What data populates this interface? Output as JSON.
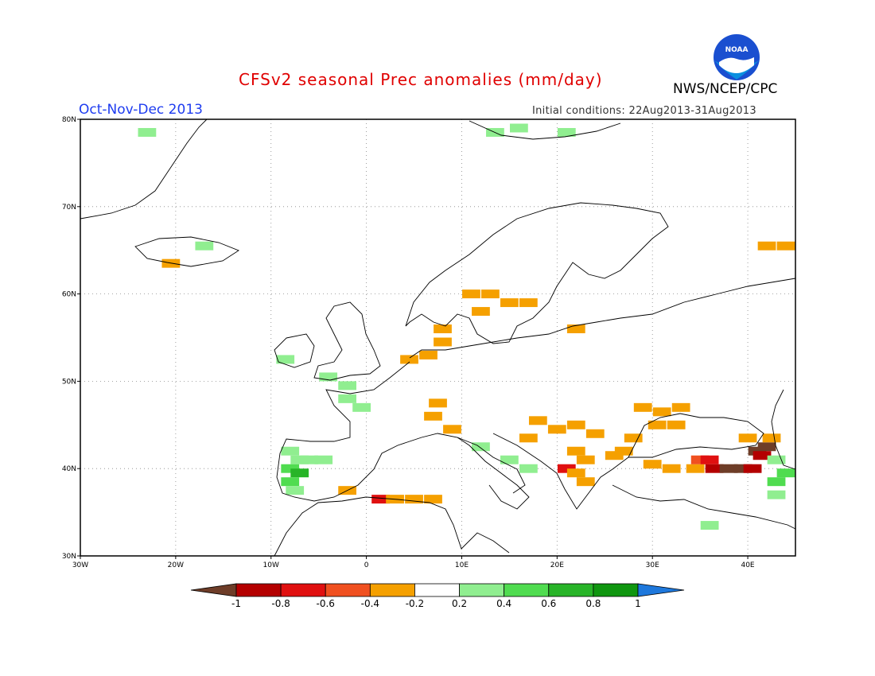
{
  "title": "CFSv2 seasonal Prec anomalies (mm/day)",
  "season": "Oct-Nov-Dec 2013",
  "initial_conditions": "Initial conditions: 22Aug2013-31Aug2013",
  "agency": "NWS/NCEP/CPC",
  "logo_text": "NOAA",
  "map": {
    "lon_range": [
      -30,
      45
    ],
    "lat_range": [
      30,
      80
    ],
    "lon_ticks": [
      {
        "value": -30,
        "label": "30W"
      },
      {
        "value": -20,
        "label": "20W"
      },
      {
        "value": -10,
        "label": "10W"
      },
      {
        "value": 0,
        "label": "0"
      },
      {
        "value": 10,
        "label": "10E"
      },
      {
        "value": 20,
        "label": "20E"
      },
      {
        "value": 30,
        "label": "30E"
      },
      {
        "value": 40,
        "label": "40E"
      }
    ],
    "lat_ticks": [
      {
        "value": 30,
        "label": "30N"
      },
      {
        "value": 40,
        "label": "40N"
      },
      {
        "value": 50,
        "label": "50N"
      },
      {
        "value": 60,
        "label": "60N"
      },
      {
        "value": 70,
        "label": "70N"
      },
      {
        "value": 80,
        "label": "80N"
      }
    ],
    "grid": true
  },
  "colorbar": {
    "labels": [
      "-1",
      "-0.8",
      "-0.6",
      "-0.4",
      "-0.2",
      "0.2",
      "0.4",
      "0.6",
      "0.8",
      "1"
    ],
    "colors": [
      "#6e3d28",
      "#b40000",
      "#e01010",
      "#f05020",
      "#f5a000",
      "#ffffff",
      "#90ee90",
      "#50dc50",
      "#28b428",
      "#109610",
      "#1e78dc"
    ]
  },
  "anomaly_cells": [
    {
      "lon": -23,
      "lat": 78.5,
      "c": 6
    },
    {
      "lon": -17,
      "lat": 65.5,
      "c": 6
    },
    {
      "lon": -20.5,
      "lat": 63.5,
      "c": 4
    },
    {
      "lon": 13.5,
      "lat": 78.5,
      "c": 6
    },
    {
      "lon": 16,
      "lat": 79,
      "c": 6
    },
    {
      "lon": 21,
      "lat": 78.5,
      "c": 6
    },
    {
      "lon": 11,
      "lat": 60,
      "c": 4
    },
    {
      "lon": 13,
      "lat": 60,
      "c": 4
    },
    {
      "lon": 15,
      "lat": 59,
      "c": 4
    },
    {
      "lon": 17,
      "lat": 59,
      "c": 4
    },
    {
      "lon": 12,
      "lat": 58,
      "c": 4
    },
    {
      "lon": 8,
      "lat": 56,
      "c": 4
    },
    {
      "lon": 22,
      "lat": 56,
      "c": 4
    },
    {
      "lon": 8,
      "lat": 54.5,
      "c": 4
    },
    {
      "lon": 6.5,
      "lat": 53,
      "c": 4
    },
    {
      "lon": 4.5,
      "lat": 52.5,
      "c": 4
    },
    {
      "lon": -8.5,
      "lat": 52.5,
      "c": 6
    },
    {
      "lon": -4,
      "lat": 50.5,
      "c": 6
    },
    {
      "lon": -2,
      "lat": 49.5,
      "c": 6
    },
    {
      "lon": -2,
      "lat": 48,
      "c": 6
    },
    {
      "lon": -0.5,
      "lat": 47,
      "c": 6
    },
    {
      "lon": 7.5,
      "lat": 47.5,
      "c": 4
    },
    {
      "lon": 7,
      "lat": 46,
      "c": 4
    },
    {
      "lon": 9,
      "lat": 44.5,
      "c": 4
    },
    {
      "lon": 18,
      "lat": 45.5,
      "c": 4
    },
    {
      "lon": 20,
      "lat": 44.5,
      "c": 4
    },
    {
      "lon": 22,
      "lat": 45,
      "c": 4
    },
    {
      "lon": 17,
      "lat": 43.5,
      "c": 4
    },
    {
      "lon": 24,
      "lat": 44,
      "c": 4
    },
    {
      "lon": 29,
      "lat": 47,
      "c": 4
    },
    {
      "lon": 31,
      "lat": 46.5,
      "c": 4
    },
    {
      "lon": 33,
      "lat": 47,
      "c": 4
    },
    {
      "lon": 30.5,
      "lat": 45,
      "c": 4
    },
    {
      "lon": 32.5,
      "lat": 45,
      "c": 4
    },
    {
      "lon": 28,
      "lat": 43.5,
      "c": 4
    },
    {
      "lon": 27,
      "lat": 42,
      "c": 4
    },
    {
      "lon": 12,
      "lat": 42.5,
      "c": 6
    },
    {
      "lon": 15,
      "lat": 41,
      "c": 6
    },
    {
      "lon": 17,
      "lat": 40,
      "c": 6
    },
    {
      "lon": 22,
      "lat": 42,
      "c": 4
    },
    {
      "lon": 23,
      "lat": 41,
      "c": 4
    },
    {
      "lon": 26,
      "lat": 41.5,
      "c": 4
    },
    {
      "lon": 21,
      "lat": 40,
      "c": 2
    },
    {
      "lon": 22,
      "lat": 39.5,
      "c": 4
    },
    {
      "lon": 23,
      "lat": 38.5,
      "c": 4
    },
    {
      "lon": 30,
      "lat": 40.5,
      "c": 4
    },
    {
      "lon": 32,
      "lat": 40,
      "c": 4
    },
    {
      "lon": 34.5,
      "lat": 40,
      "c": 4
    },
    {
      "lon": 35,
      "lat": 41,
      "c": 3
    },
    {
      "lon": 36,
      "lat": 41,
      "c": 2
    },
    {
      "lon": 36.5,
      "lat": 40,
      "c": 1
    },
    {
      "lon": 38,
      "lat": 40,
      "c": 0
    },
    {
      "lon": 39.5,
      "lat": 40,
      "c": 0
    },
    {
      "lon": 40.5,
      "lat": 40,
      "c": 1
    },
    {
      "lon": 42,
      "lat": 42.5,
      "c": 0
    },
    {
      "lon": 41,
      "lat": 42,
      "c": 0
    },
    {
      "lon": 41.5,
      "lat": 41.5,
      "c": 1
    },
    {
      "lon": 42.5,
      "lat": 43.5,
      "c": 4
    },
    {
      "lon": 40,
      "lat": 43.5,
      "c": 4
    },
    {
      "lon": 43,
      "lat": 41,
      "c": 6
    },
    {
      "lon": 44,
      "lat": 39.5,
      "c": 7
    },
    {
      "lon": 43,
      "lat": 38.5,
      "c": 7
    },
    {
      "lon": 43,
      "lat": 37,
      "c": 6
    },
    {
      "lon": 42,
      "lat": 65.5,
      "c": 4
    },
    {
      "lon": 44,
      "lat": 65.5,
      "c": 4
    },
    {
      "lon": 36,
      "lat": 33.5,
      "c": 6
    },
    {
      "lon": -8,
      "lat": 42,
      "c": 6
    },
    {
      "lon": -7,
      "lat": 41,
      "c": 6
    },
    {
      "lon": -6,
      "lat": 41,
      "c": 6
    },
    {
      "lon": -8,
      "lat": 40,
      "c": 7
    },
    {
      "lon": -7,
      "lat": 39.5,
      "c": 8
    },
    {
      "lon": -8,
      "lat": 38.5,
      "c": 7
    },
    {
      "lon": -7.5,
      "lat": 37.5,
      "c": 6
    },
    {
      "lon": -4.5,
      "lat": 41,
      "c": 6
    },
    {
      "lon": -2,
      "lat": 37.5,
      "c": 4
    },
    {
      "lon": 1.5,
      "lat": 36.5,
      "c": 2
    },
    {
      "lon": 3,
      "lat": 36.5,
      "c": 4
    },
    {
      "lon": 5,
      "lat": 36.5,
      "c": 4
    },
    {
      "lon": 7,
      "lat": 36.5,
      "c": 4
    }
  ]
}
